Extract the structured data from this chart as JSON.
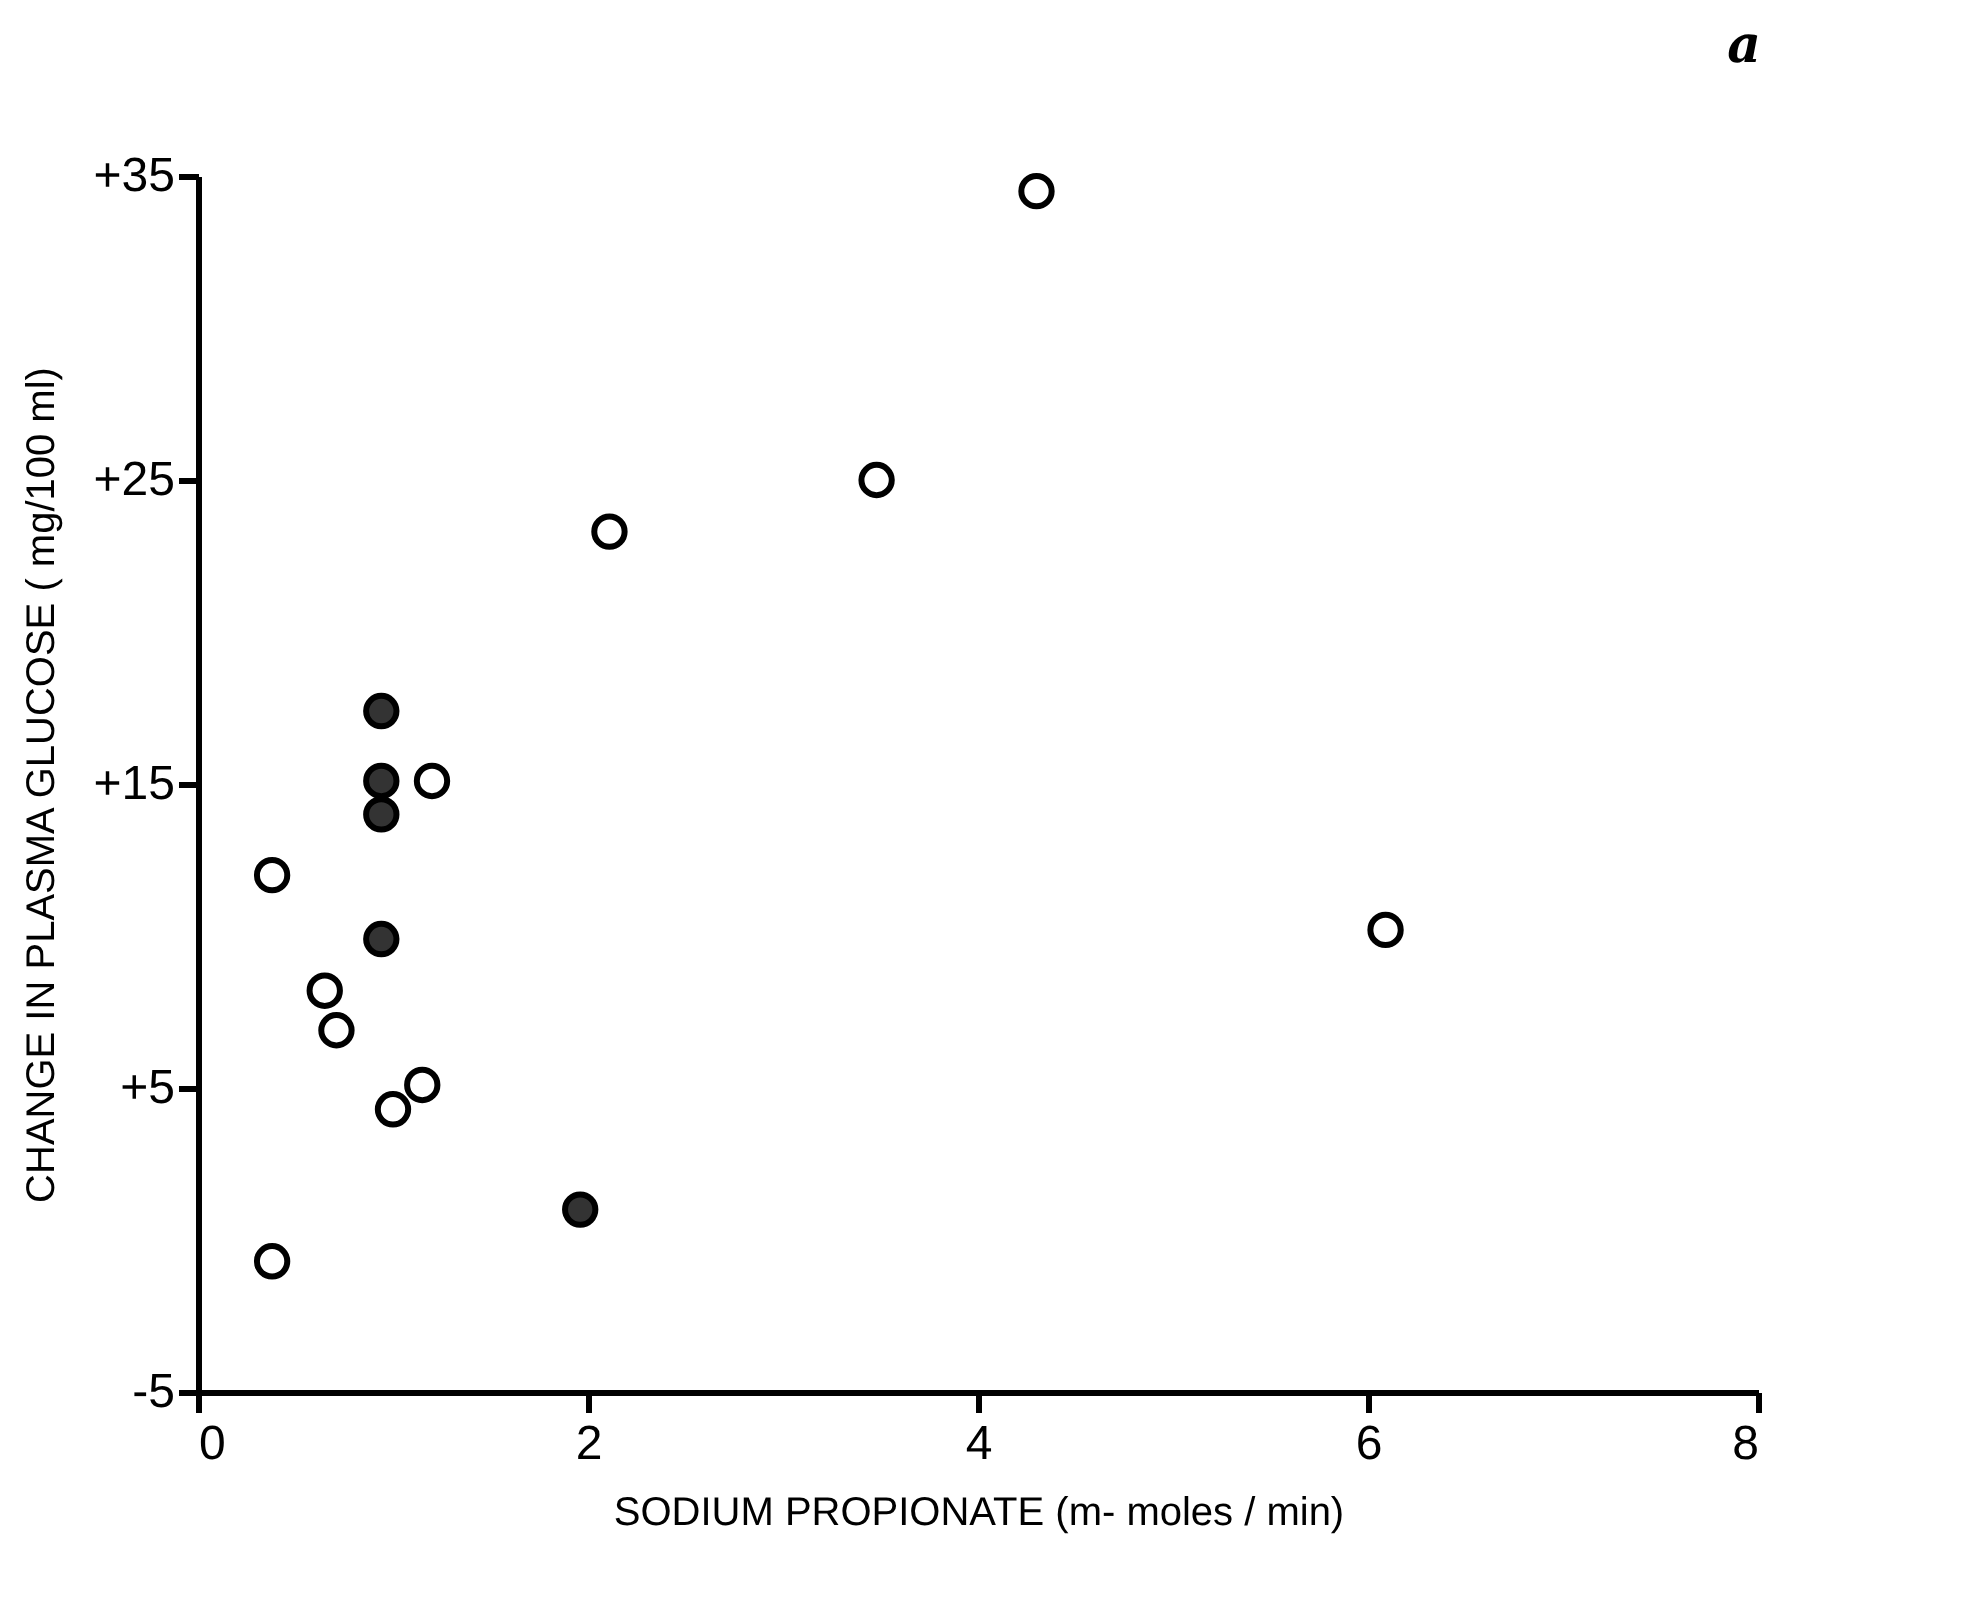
{
  "chart_data": {
    "type": "scatter",
    "xlabel": "SODIUM PROPIONATE   (m- moles / min)",
    "ylabel": "CHANGE IN PLASMA GLUCOSE ( mg/100 ml)",
    "annotations": [
      "a"
    ],
    "xlim": [
      0,
      8
    ],
    "xticks": [
      0,
      2,
      4,
      6,
      8
    ],
    "ylim": [
      -5,
      35
    ],
    "yticks": [
      -5,
      {
        "value": 5,
        "label": "+5"
      },
      {
        "value": 15,
        "label": "+15"
      },
      {
        "value": 25,
        "label": "+25"
      },
      {
        "value": 35,
        "label": "+35"
      }
    ],
    "grid": false,
    "legend": false,
    "marker": "circle",
    "series": [
      {
        "color": "#ffffff",
        "x": [
          0.38,
          0.38,
          0.65,
          0.71,
          1.0,
          1.15,
          1.2,
          2.11,
          3.48,
          4.3,
          6.09
        ],
        "values": [
          12.0,
          -0.7,
          8.2,
          6.9,
          4.3,
          5.1,
          15.1,
          23.3,
          25.0,
          34.5,
          10.2
        ]
      },
      {
        "color": "#333333",
        "x": [
          0.94,
          0.94,
          0.94,
          0.94,
          1.96
        ],
        "values": [
          17.4,
          15.1,
          14.0,
          9.9,
          1.0
        ]
      }
    ]
  }
}
